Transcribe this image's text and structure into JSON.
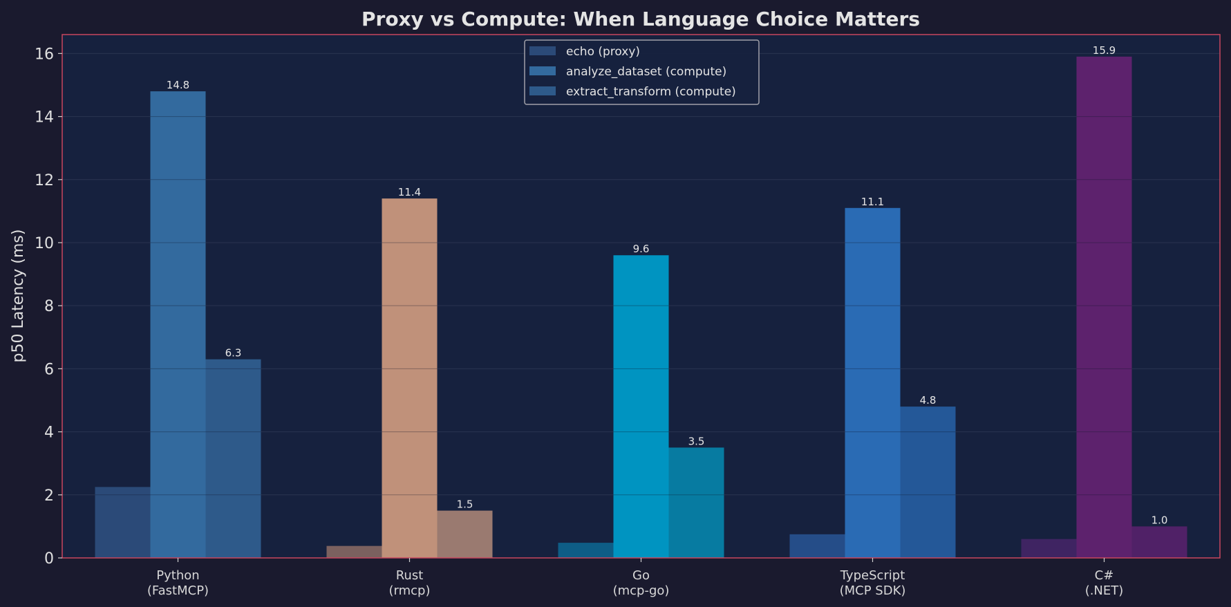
{
  "chart_data": {
    "type": "bar",
    "title": "Proxy vs Compute: When Language Choice Matters",
    "ylabel": "p50 Latency (ms)",
    "xlabel": "",
    "ylim": [
      0,
      16.6
    ],
    "yticks": [
      "0",
      "2",
      "4",
      "6",
      "8",
      "10",
      "12",
      "14",
      "16"
    ],
    "grid": true,
    "legend_position": "top-center",
    "categories": [
      {
        "line1": "Python",
        "line2": "(FastMCP)"
      },
      {
        "line1": "Rust",
        "line2": "(rmcp)"
      },
      {
        "line1": "Go",
        "line2": "(mcp-go)"
      },
      {
        "line1": "TypeScript",
        "line2": "(MCP SDK)"
      },
      {
        "line1": "C#",
        "line2": "(.NET)"
      }
    ],
    "series": [
      {
        "name": "echo (proxy)",
        "values": [
          2.25,
          0.38,
          0.48,
          0.75,
          0.6
        ],
        "labels": [
          "",
          "",
          "",
          "",
          ""
        ],
        "legend_color": "#2b4a78"
      },
      {
        "name": "analyze_dataset (compute)",
        "values": [
          14.8,
          11.4,
          9.6,
          11.1,
          15.9
        ],
        "labels": [
          "14.8",
          "11.4",
          "9.6",
          "11.1",
          "15.9"
        ],
        "legend_color": "#336a9e"
      },
      {
        "name": "extract_transform (compute)",
        "values": [
          6.3,
          1.5,
          3.5,
          4.8,
          1.0
        ],
        "labels": [
          "6.3",
          "1.5",
          "3.5",
          "4.8",
          "1.0"
        ],
        "legend_color": "#2e5a8a"
      }
    ],
    "bar_colors": [
      [
        "#2b4a78",
        "#336a9e",
        "#2e5a8a"
      ],
      [
        "#7b615f",
        "#c0917a",
        "#9a7a70"
      ],
      [
        "#0e5d86",
        "#0094c1",
        "#077ba1"
      ],
      [
        "#254d88",
        "#2a6bb4",
        "#245898"
      ],
      [
        "#3f2462",
        "#5d226d",
        "#502167"
      ]
    ],
    "colors": {
      "page_bg": "#1a1a2e",
      "plot_bg": "#16213e",
      "plot_border": "#c8465e",
      "grid": "#2a3450",
      "legend_border": "#a0a0a8"
    }
  }
}
